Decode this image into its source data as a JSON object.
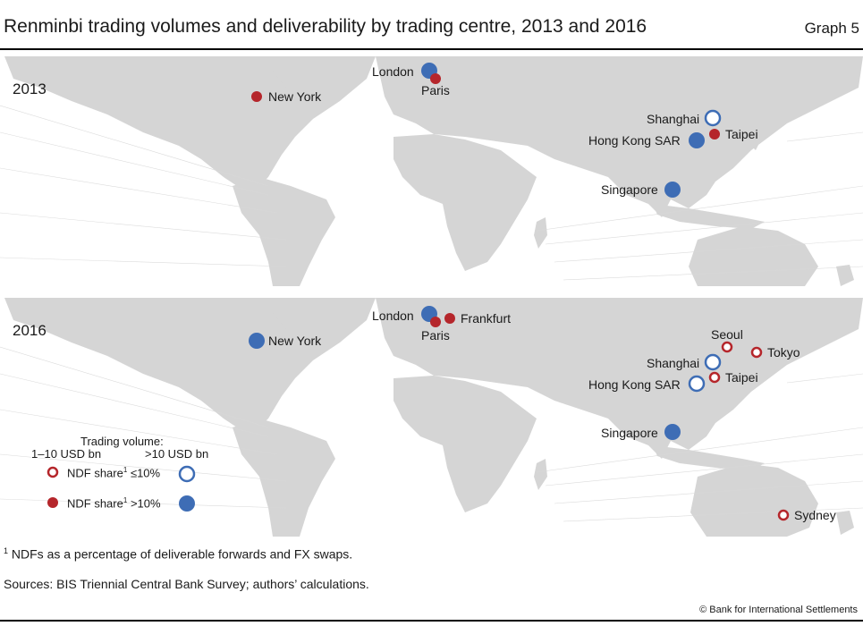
{
  "title": "Renminbi trading volumes and deliverability by trading centre, 2013 and 2016",
  "graph_number": "Graph 5",
  "colors": {
    "red": "#b5262b",
    "blue": "#3e6db5",
    "land": "#d5d5d5"
  },
  "panels": [
    {
      "year": "2013",
      "centres": [
        {
          "name": "London",
          "volume": ">10 USD bn",
          "ndf": ">10%"
        },
        {
          "name": "Paris",
          "volume": "1–10 USD bn",
          "ndf": ">10%"
        },
        {
          "name": "New York",
          "volume": "1–10 USD bn",
          "ndf": ">10%"
        },
        {
          "name": "Shanghai",
          "volume": ">10 USD bn",
          "ndf": "≤10%"
        },
        {
          "name": "Taipei",
          "volume": "1–10 USD bn",
          "ndf": ">10%"
        },
        {
          "name": "Hong Kong SAR",
          "volume": ">10 USD bn",
          "ndf": ">10%"
        },
        {
          "name": "Singapore",
          "volume": ">10 USD bn",
          "ndf": ">10%"
        }
      ]
    },
    {
      "year": "2016",
      "centres": [
        {
          "name": "London",
          "volume": ">10 USD bn",
          "ndf": ">10%"
        },
        {
          "name": "Paris",
          "volume": "1–10 USD bn",
          "ndf": ">10%"
        },
        {
          "name": "Frankfurt",
          "volume": "1–10 USD bn",
          "ndf": ">10%"
        },
        {
          "name": "New York",
          "volume": ">10 USD bn",
          "ndf": ">10%"
        },
        {
          "name": "Seoul",
          "volume": "1–10 USD bn",
          "ndf": "≤10%"
        },
        {
          "name": "Tokyo",
          "volume": "1–10 USD bn",
          "ndf": "≤10%"
        },
        {
          "name": "Shanghai",
          "volume": ">10 USD bn",
          "ndf": "≤10%"
        },
        {
          "name": "Taipei",
          "volume": "1–10 USD bn",
          "ndf": "≤10%"
        },
        {
          "name": "Hong Kong SAR",
          "volume": ">10 USD bn",
          "ndf": "≤10%"
        },
        {
          "name": "Singapore",
          "volume": ">10 USD bn",
          "ndf": ">10%"
        },
        {
          "name": "Sydney",
          "volume": "1–10 USD bn",
          "ndf": "≤10%"
        }
      ]
    }
  ],
  "legend": {
    "title": "Trading volume:",
    "small_label": "1–10 USD bn",
    "large_label": ">10 USD bn",
    "row1_label": "NDF share",
    "row1_sup": "1",
    "row1_value": "≤10%",
    "row2_label": "NDF share",
    "row2_sup": "1",
    "row2_value": ">10%"
  },
  "footnotes": {
    "note_marker": "1",
    "note_text": "NDFs as a percentage of deliverable forwards and FX swaps.",
    "sources": "Sources: BIS Triennial Central Bank Survey; authors’ calculations."
  },
  "copyright": "© Bank for International Settlements"
}
